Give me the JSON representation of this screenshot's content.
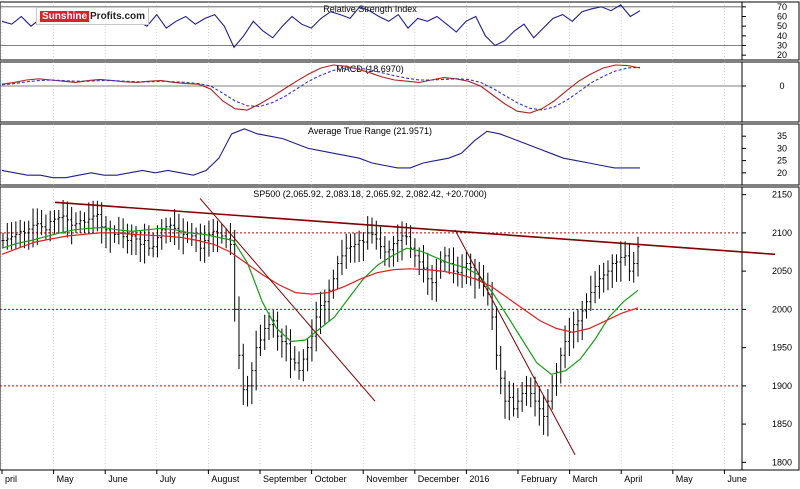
{
  "logo": {
    "part1": "Sunshine",
    "part2": "Profits.com"
  },
  "months": [
    "pril",
    "May",
    "June",
    "July",
    "August",
    "September",
    "October",
    "November",
    "December",
    "2016",
    "February",
    "March",
    "April",
    "May",
    "June"
  ],
  "panels": [
    {
      "id": "rsi",
      "title": "Relative Strength Index",
      "ticks": [
        "70",
        "60",
        "50",
        "40",
        "30",
        "20"
      ]
    },
    {
      "id": "macd",
      "title": "MACD (18.6970)",
      "ticks": [
        "0"
      ]
    },
    {
      "id": "atr",
      "title": "Average True Range (21.9571)",
      "ticks": [
        "35",
        "30",
        "25",
        "20"
      ]
    },
    {
      "id": "price",
      "title": "SP500 (2,065.92, 2,083.18, 2,065.92, 2,082.42, +20.7000)",
      "ticks": [
        "2150",
        "2100",
        "2050",
        "2000",
        "1950",
        "1900",
        "1850",
        "1800"
      ]
    }
  ],
  "colors": {
    "price_bars": "#000000",
    "ma_short": "#1a9b1a",
    "ma_long": "#e02020",
    "trend": "#800000",
    "indicator": "#1f1f8f",
    "grid": "#c0c0c0",
    "support": "#c00000"
  },
  "chart_data": [
    {
      "type": "line",
      "title": "Relative Strength Index",
      "ylim": [
        15,
        75
      ],
      "reference_levels": [
        70,
        30
      ],
      "series": [
        {
          "values": [
            55,
            52,
            60,
            50,
            58,
            65,
            55,
            60,
            52,
            58,
            60,
            66,
            58,
            62,
            55,
            50,
            62,
            48,
            55,
            60,
            52,
            58,
            62,
            50,
            28,
            40,
            55,
            45,
            38,
            50,
            60,
            52,
            48,
            58,
            65,
            62,
            58,
            70,
            66,
            60,
            55,
            62,
            48,
            58,
            55,
            60,
            52,
            44,
            55,
            60,
            40,
            30,
            35,
            45,
            52,
            38,
            48,
            58,
            62,
            55,
            65,
            68,
            70,
            66,
            72,
            60,
            66
          ]
        }
      ]
    },
    {
      "type": "line",
      "title": "MACD (18.6970)",
      "ylim": [
        -60,
        40
      ],
      "series": [
        {
          "values": [
            3,
            6,
            10,
            12,
            10,
            8,
            6,
            9,
            11,
            9,
            7,
            6,
            8,
            9,
            6,
            4,
            3,
            -5,
            -25,
            -38,
            -40,
            -30,
            -18,
            -5,
            8,
            20,
            30,
            35,
            33,
            28,
            22,
            15,
            10,
            8,
            6,
            10,
            14,
            12,
            8,
            0,
            -15,
            -30,
            -42,
            -45,
            -38,
            -25,
            -8,
            8,
            20,
            30,
            35,
            34,
            30
          ]
        },
        {
          "values": [
            2,
            4,
            7,
            9,
            10,
            9,
            8,
            8,
            9,
            9,
            8,
            7,
            7,
            8,
            7,
            6,
            4,
            0,
            -12,
            -25,
            -33,
            -34,
            -28,
            -18,
            -5,
            8,
            18,
            26,
            30,
            30,
            27,
            22,
            17,
            13,
            10,
            10,
            11,
            12,
            11,
            6,
            -4,
            -16,
            -28,
            -37,
            -40,
            -35,
            -24,
            -10,
            5,
            16,
            25,
            30,
            31
          ]
        }
      ]
    },
    {
      "type": "line",
      "title": "Average True Range (21.9571)",
      "ylim": [
        15,
        40
      ],
      "series": [
        {
          "values": [
            21,
            20,
            19,
            19,
            18,
            18,
            19,
            20,
            19,
            19,
            20,
            21,
            20,
            21,
            20,
            19,
            21,
            26,
            36,
            38,
            36,
            35,
            34,
            32,
            30,
            29,
            28,
            27,
            26,
            24,
            23,
            22,
            22,
            24,
            25,
            26,
            28,
            33,
            37,
            36,
            34,
            32,
            30,
            28,
            26,
            25,
            24,
            23,
            22,
            22,
            22
          ]
        }
      ]
    },
    {
      "type": "candlestick",
      "title": "SP500 (2,065.92, 2,083.18, 2,065.92, 2,082.42, +20.7000)",
      "ylim": [
        1790,
        2160
      ],
      "reference_levels": [
        2100,
        2000,
        1900
      ],
      "close": [
        2090,
        2092,
        2095,
        2098,
        2102,
        2100,
        2105,
        2110,
        2112,
        2108,
        2104,
        2115,
        2118,
        2120,
        2122,
        2117,
        2110,
        2112,
        2116,
        2114,
        2118,
        2122,
        2124,
        2108,
        2104,
        2100,
        2098,
        2100,
        2095,
        2090,
        2096,
        2092,
        2085,
        2090,
        2080,
        2082,
        2094,
        2104,
        2108,
        2110,
        2106,
        2102,
        2098,
        2100,
        2096,
        2090,
        2080,
        2090,
        2098,
        2102,
        2100,
        2096,
        2092,
        2085,
        2000,
        1940,
        1895,
        1900,
        1920,
        1950,
        1960,
        1975,
        1980,
        1985,
        1965,
        1958,
        1955,
        1935,
        1930,
        1920,
        1935,
        1950,
        1965,
        1990,
        2005,
        2010,
        2025,
        2040,
        2060,
        2070,
        2080,
        2082,
        2085,
        2090,
        2088,
        2100,
        2098,
        2092,
        2082,
        2075,
        2078,
        2086,
        2090,
        2096,
        2095,
        2080,
        2070,
        2062,
        2054,
        2040,
        2035,
        2050,
        2062,
        2070,
        2060,
        2050,
        2048,
        2055,
        2060,
        2055,
        2040,
        2038,
        2030,
        2020,
        1990,
        1940,
        1910,
        1880,
        1885,
        1870,
        1880,
        1890,
        1900,
        1890,
        1880,
        1870,
        1860,
        1880,
        1900,
        1918,
        1940,
        1958,
        1970,
        1980,
        1985,
        1998,
        2010,
        2022,
        2030,
        2040,
        2045,
        2050,
        2060,
        2062,
        2068,
        2070,
        2050,
        2060,
        2082
      ],
      "series": [
        {
          "name": "ma_short",
          "values": [
            2080,
            2086,
            2090,
            2095,
            2100,
            2104,
            2106,
            2107,
            2104,
            2102,
            2104,
            2106,
            2104,
            2100,
            2098,
            2094,
            2090,
            2060,
            2010,
            1975,
            1958,
            1960,
            1975,
            1990,
            2015,
            2040,
            2058,
            2070,
            2080,
            2076,
            2068,
            2060,
            2055,
            2045,
            2020,
            1990,
            1960,
            1930,
            1915,
            1920,
            1935,
            1960,
            1990,
            2010,
            2025
          ]
        },
        {
          "name": "ma_long",
          "values": [
            2072,
            2080,
            2088,
            2092,
            2096,
            2098,
            2100,
            2100,
            2098,
            2097,
            2096,
            2094,
            2090,
            2085,
            2075,
            2060,
            2045,
            2032,
            2022,
            2020,
            2022,
            2030,
            2040,
            2048,
            2052,
            2053,
            2052,
            2050,
            2046,
            2040,
            2030,
            2015,
            2000,
            1985,
            1975,
            1970,
            1975,
            1985,
            1995,
            2002
          ]
        }
      ]
    }
  ]
}
